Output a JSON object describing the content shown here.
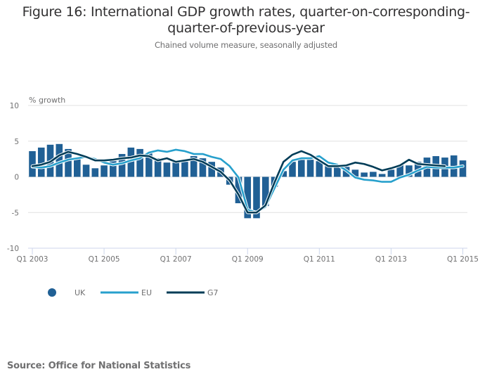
{
  "chart_data": {
    "type": "bar",
    "title": "Figure 16: International GDP growth rates, quarter-on-corresponding-quarter-of-previous-year",
    "title_lines": [
      "Figure 16: International GDP growth rates, quarter-on-corresponding-",
      "quarter-of-previous-year"
    ],
    "subtitle": "Chained volume measure, seasonally adjusted",
    "ylabel": "% growth",
    "xlabel": "",
    "ylim": [
      -10,
      10
    ],
    "yticks": [
      10,
      5,
      0,
      -5,
      -10
    ],
    "xtick_labels": [
      "Q1 2003",
      "Q1 2005",
      "Q1 2007",
      "Q1 2009",
      "Q1 2011",
      "Q1 2013",
      "Q1 2015"
    ],
    "xtick_every": 8,
    "grid": true,
    "legend_position": "bottom-left",
    "categories": [
      "Q1 2003",
      "Q2 2003",
      "Q3 2003",
      "Q4 2003",
      "Q1 2004",
      "Q2 2004",
      "Q3 2004",
      "Q4 2004",
      "Q1 2005",
      "Q2 2005",
      "Q3 2005",
      "Q4 2005",
      "Q1 2006",
      "Q2 2006",
      "Q3 2006",
      "Q4 2006",
      "Q1 2007",
      "Q2 2007",
      "Q3 2007",
      "Q4 2007",
      "Q1 2008",
      "Q2 2008",
      "Q3 2008",
      "Q4 2008",
      "Q1 2009",
      "Q2 2009",
      "Q3 2009",
      "Q4 2009",
      "Q1 2010",
      "Q2 2010",
      "Q3 2010",
      "Q4 2010",
      "Q1 2011",
      "Q2 2011",
      "Q3 2011",
      "Q4 2011",
      "Q1 2012",
      "Q2 2012",
      "Q3 2012",
      "Q4 2012",
      "Q1 2013",
      "Q2 2013",
      "Q3 2013",
      "Q4 2013",
      "Q1 2014",
      "Q2 2014",
      "Q3 2014",
      "Q4 2014",
      "Q1 2015"
    ],
    "series": [
      {
        "name": "UK",
        "type": "bar",
        "color": "#206095",
        "values": [
          3.6,
          4.1,
          4.5,
          4.6,
          3.9,
          2.7,
          1.7,
          1.2,
          1.6,
          2.2,
          3.2,
          4.1,
          3.9,
          3.3,
          2.6,
          2.0,
          2.0,
          2.1,
          2.9,
          2.6,
          2.1,
          1.3,
          -1.1,
          -3.7,
          -5.8,
          -5.8,
          -4.1,
          -1.4,
          0.8,
          2.1,
          2.4,
          2.4,
          2.2,
          1.5,
          1.4,
          1.4,
          1.0,
          0.6,
          0.7,
          0.4,
          1.0,
          1.7,
          1.6,
          2.1,
          2.7,
          2.9,
          2.7,
          3.0,
          2.3
        ]
      },
      {
        "name": "EU",
        "type": "line",
        "color": "#27a0cc",
        "values": [
          1.4,
          1.3,
          1.5,
          2.0,
          2.4,
          2.6,
          2.8,
          2.5,
          2.0,
          1.7,
          1.9,
          2.3,
          2.6,
          3.4,
          3.7,
          3.5,
          3.8,
          3.6,
          3.2,
          3.2,
          2.8,
          2.5,
          1.5,
          -0.1,
          -4.6,
          -5.0,
          -4.2,
          -1.6,
          1.0,
          2.3,
          2.6,
          2.6,
          2.9,
          2.0,
          1.7,
          0.9,
          -0.1,
          -0.4,
          -0.5,
          -0.7,
          -0.7,
          -0.1,
          0.3,
          0.9,
          1.4,
          1.3,
          1.3,
          1.3,
          1.5
        ]
      },
      {
        "name": "G7",
        "type": "line",
        "color": "#003c57",
        "values": [
          1.5,
          1.7,
          2.1,
          3.0,
          3.5,
          3.2,
          2.8,
          2.3,
          2.3,
          2.4,
          2.6,
          2.7,
          3.0,
          2.9,
          2.3,
          2.6,
          2.1,
          2.3,
          2.5,
          2.1,
          1.4,
          0.7,
          -0.5,
          -2.5,
          -5.0,
          -5.0,
          -4.0,
          -0.8,
          2.1,
          3.1,
          3.6,
          3.1,
          2.3,
          1.5,
          1.5,
          1.6,
          2.0,
          1.8,
          1.4,
          0.9,
          1.2,
          1.6,
          2.4,
          1.8,
          1.7,
          1.6,
          1.5
        ]
      }
    ]
  },
  "source": "Source: Office for National Statistics"
}
